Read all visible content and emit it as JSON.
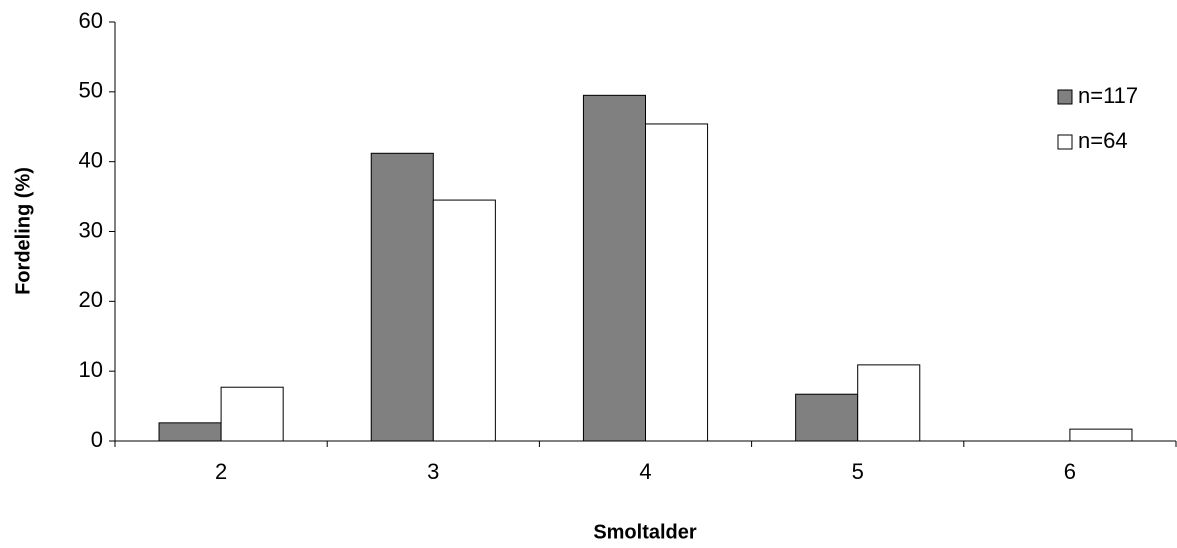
{
  "chart_data": {
    "type": "bar",
    "x_label": "Smoltalder",
    "y_label": "Fordeling (%)",
    "categories": [
      "2",
      "3",
      "4",
      "5",
      "6"
    ],
    "series": [
      {
        "name": "n=117",
        "color": "#808080",
        "values": [
          2.6,
          41.2,
          49.5,
          6.7,
          0
        ]
      },
      {
        "name": "n=64",
        "color": "#ffffff",
        "values": [
          7.7,
          34.5,
          45.4,
          10.9,
          1.7
        ]
      }
    ],
    "ylim": [
      0,
      60
    ],
    "yticks": [
      0,
      10,
      20,
      30,
      40,
      50,
      60
    ],
    "grid": false,
    "legend": "right"
  }
}
